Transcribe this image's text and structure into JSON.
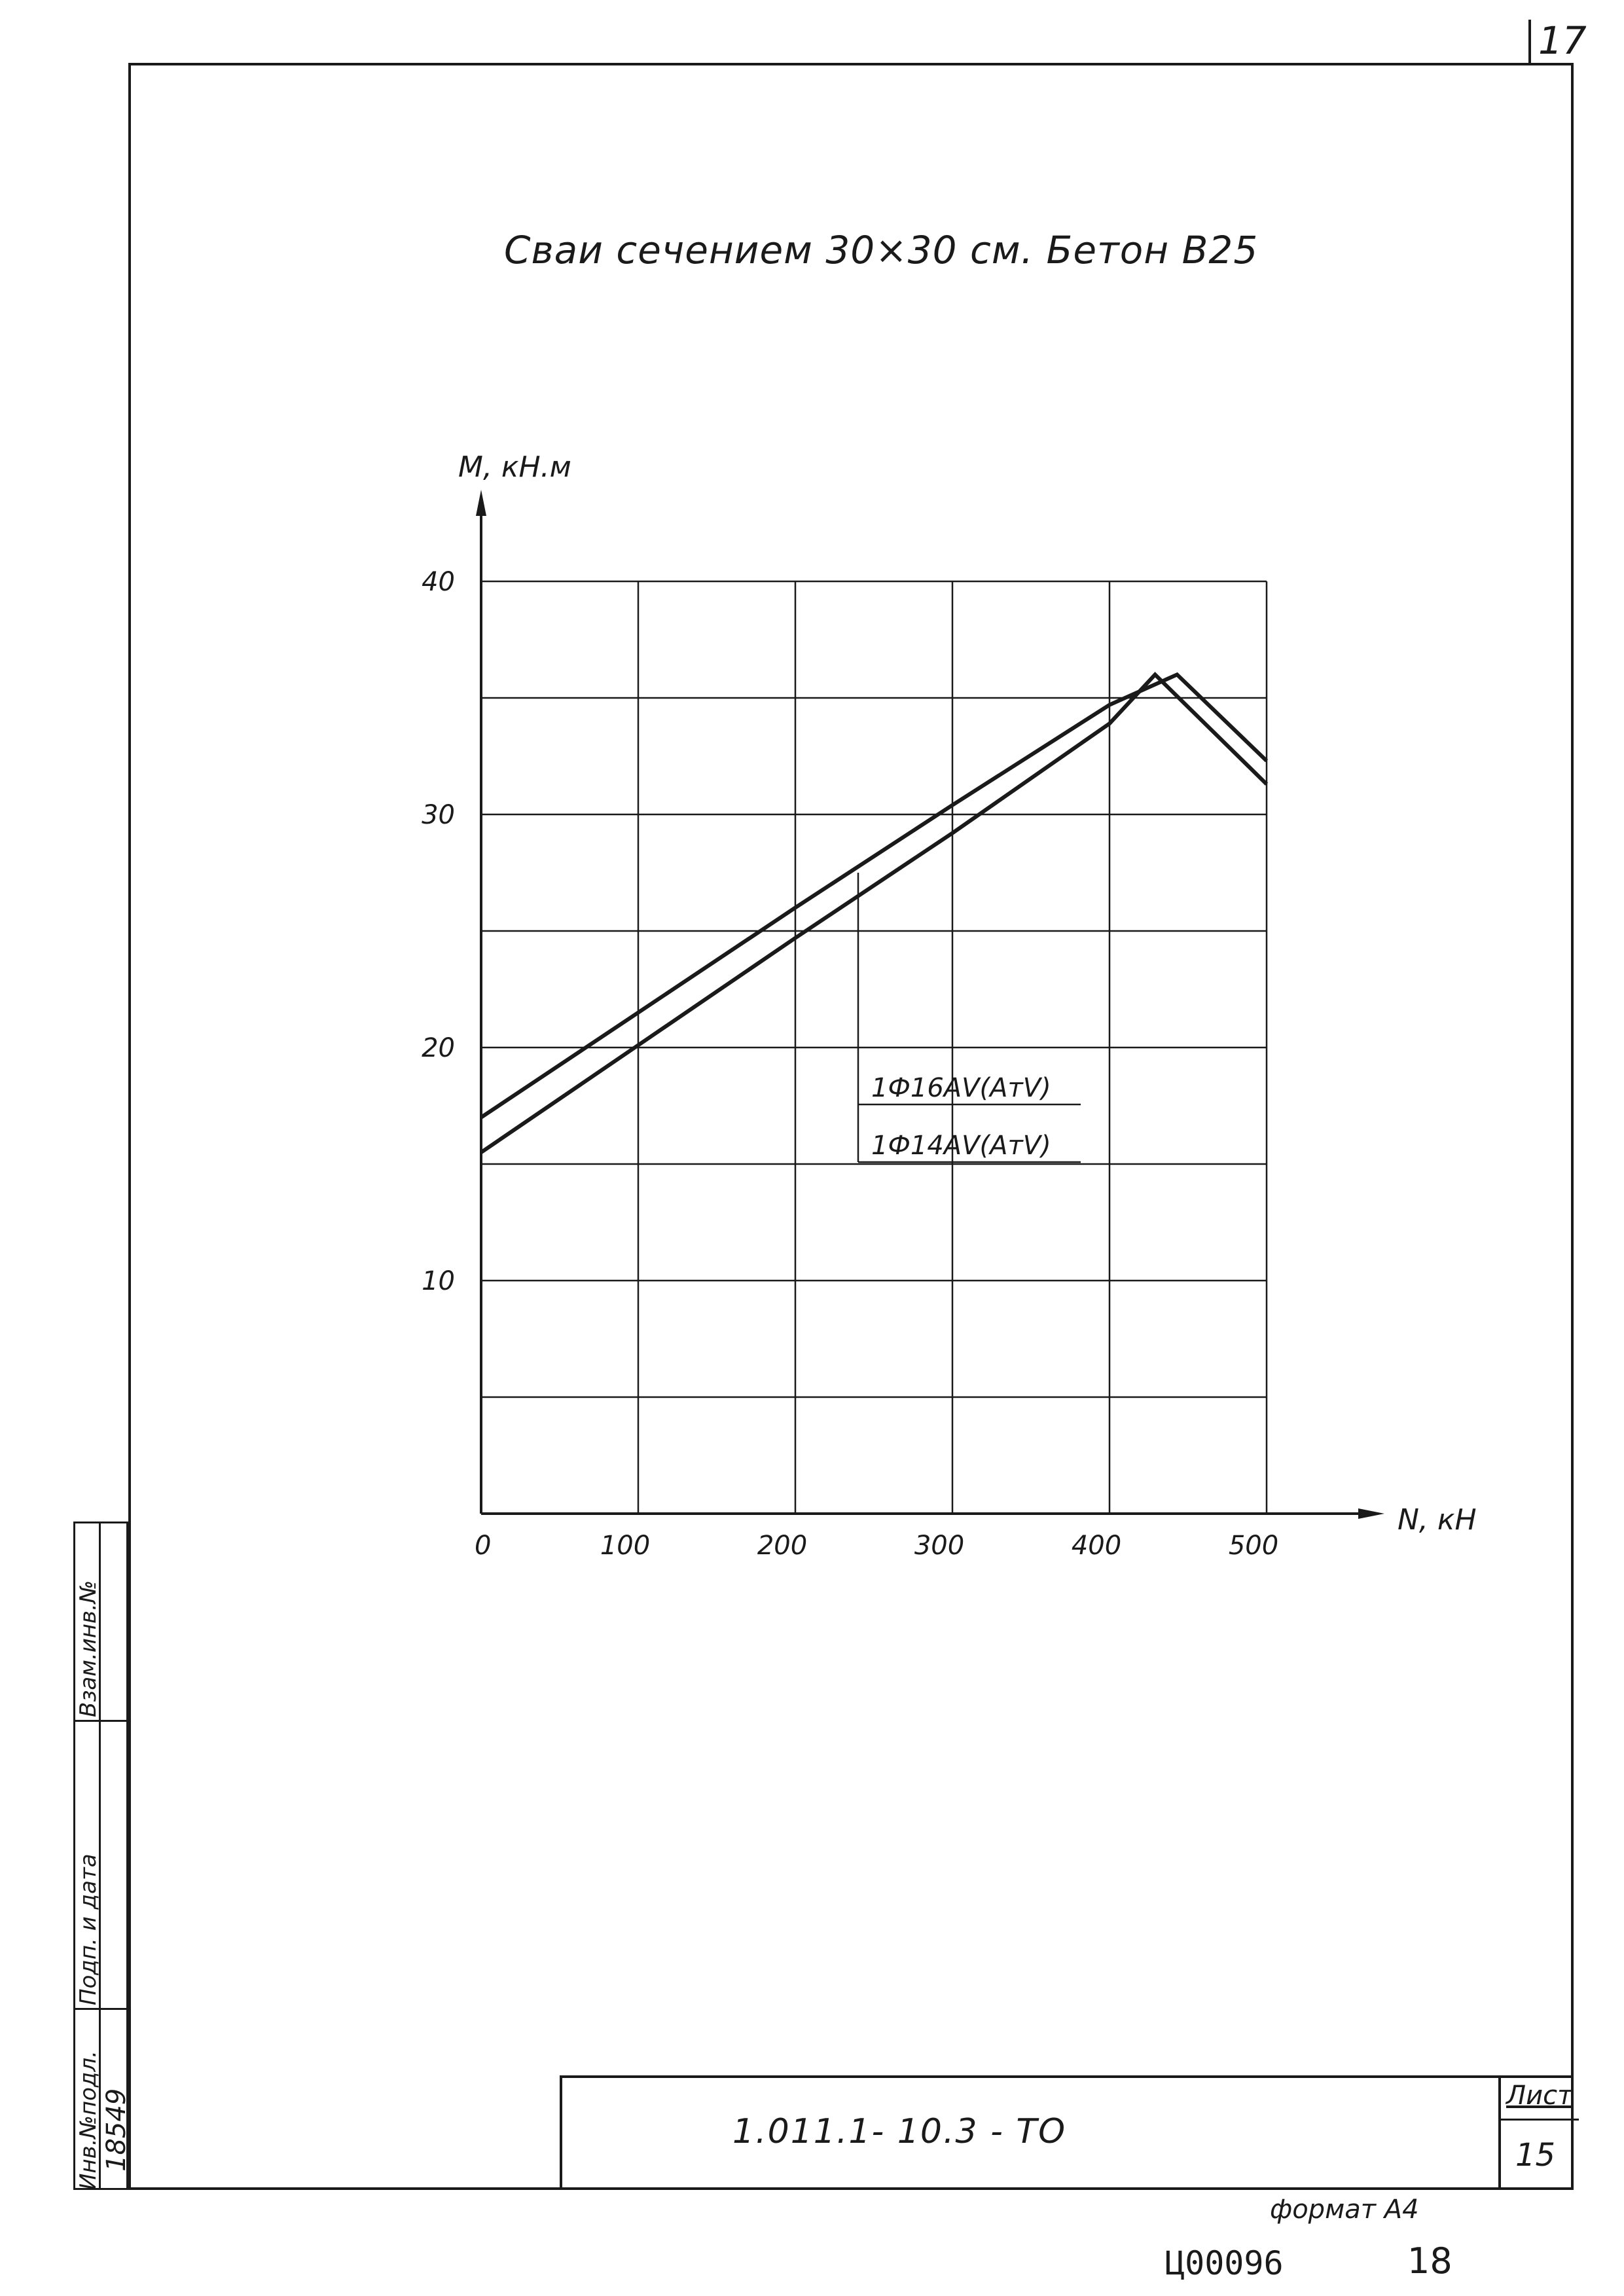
{
  "page": {
    "sheet_mark": "17",
    "title": "Сваи   сечением  30×30 см. Бетон В25",
    "bottom_stamp": {
      "doc_code": "1.011.1- 10.3 -      ТО",
      "sheet_label": "Лист",
      "sheet_number": "15"
    },
    "side_stamp": {
      "col1": [
        "Инв.№подл.",
        "Подп. и дата",
        "Взам.инв.№"
      ],
      "col2": [
        "18549",
        "",
        ""
      ]
    },
    "format_text": "формат А4",
    "archive_number": "Ц00096",
    "archive_page": "18"
  },
  "chart_data": {
    "type": "line",
    "title": "",
    "xlabel": "N, кН",
    "ylabel": "М, кН.м",
    "xlim": [
      0,
      500
    ],
    "ylim": [
      0,
      40
    ],
    "x_ticks": [
      0,
      100,
      200,
      300,
      400,
      500
    ],
    "x_tick_labels": [
      "0",
      "100",
      "200",
      "300",
      "400",
      "500"
    ],
    "y_ticks": [
      0,
      5,
      10,
      15,
      20,
      25,
      30,
      35,
      40
    ],
    "y_tick_labels": [
      "10",
      "20",
      "30",
      "40"
    ],
    "y_labeled_values": [
      10,
      20,
      30,
      40
    ],
    "grid": true,
    "line_color": "#1a1a1a",
    "series": [
      {
        "name": "1Ф16АV(АтV)",
        "x": [
          0,
          100,
          200,
          300,
          400,
          443,
          500
        ],
        "y": [
          17.0,
          21.5,
          26.0,
          30.4,
          34.7,
          36.0,
          32.3
        ]
      },
      {
        "name": "1Ф14АV(АтV)",
        "x": [
          0,
          100,
          200,
          300,
          400,
          429,
          500
        ],
        "y": [
          15.5,
          20.1,
          24.7,
          29.2,
          33.9,
          36.0,
          31.3
        ]
      }
    ],
    "legend": {
      "labels": [
        "1Ф16АV(АтV)",
        "1Ф14АV(АтV)"
      ],
      "placement": "center-right",
      "leader_x": 240,
      "leader_top_y": 27.5
    }
  }
}
